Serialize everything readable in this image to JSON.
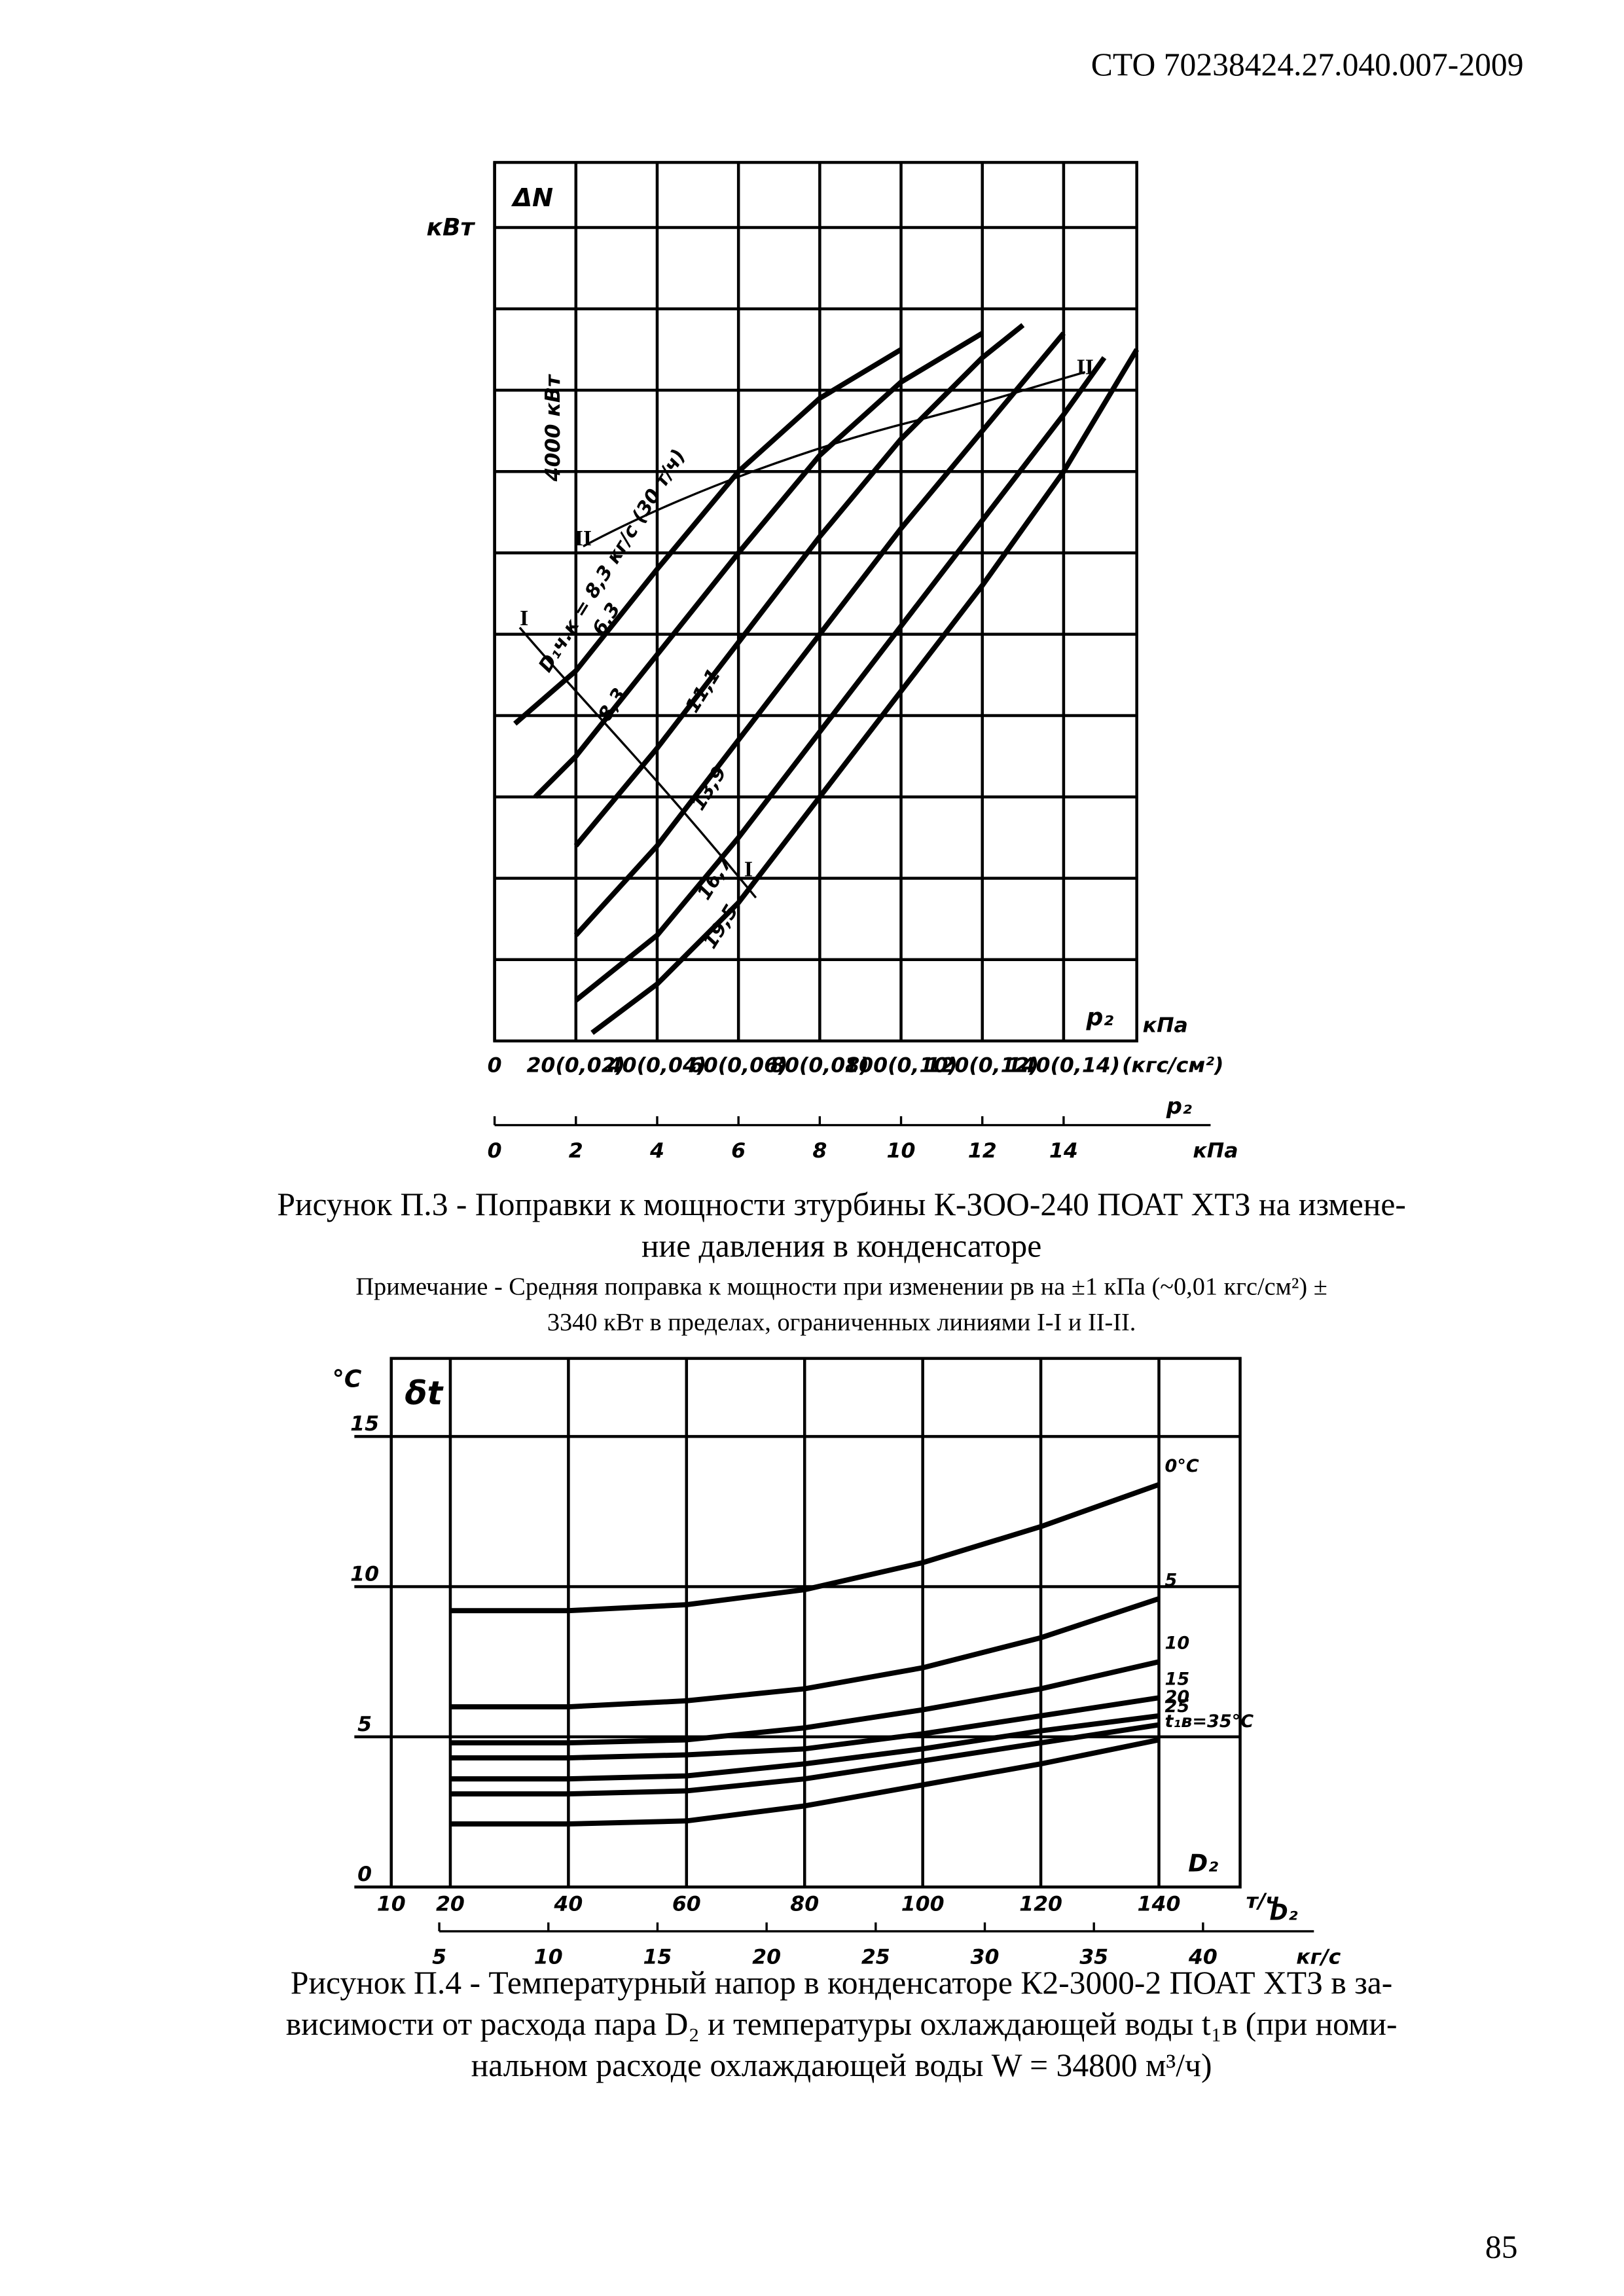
{
  "header": {
    "code": "СТО 70238424.27.040.007-2009"
  },
  "chart_data": [
    {
      "type": "line",
      "y_unit": "кВт",
      "y_label": "ΔN",
      "scale_note": "4000 кВт",
      "x_label": "p₂",
      "x_unit": "кПа",
      "x_unit_alt": "(кгс/см²)",
      "x2_label": "p₂",
      "x2_unit": "кПа",
      "xlim": [
        0,
        15.8
      ],
      "x2lim": [
        0,
        15.8
      ],
      "ylim": [
        0,
        21600
      ],
      "xticks": [
        0,
        {
          "value": 2,
          "label": "20(0,02)"
        },
        {
          "value": 4,
          "label": "40(0,04)"
        },
        {
          "value": 6,
          "label": "60(0,06)"
        },
        {
          "value": 8,
          "label": "80(0,08)"
        },
        {
          "value": 10,
          "label": "100(0,10)"
        },
        {
          "value": 12,
          "label": "120(0,12)"
        },
        {
          "value": 14,
          "label": "140(0,14)"
        }
      ],
      "x2ticks": [
        0,
        2,
        4,
        6,
        8,
        10,
        12,
        14
      ],
      "ygrid": [
        2000,
        4000,
        6000,
        8000,
        10000,
        12000,
        14000,
        16000,
        18000,
        20000
      ],
      "grid": true,
      "flow_note": "D₁ч.к = 8,3 кг/с (30 т/ч)",
      "boundary_labels": [
        "I",
        "I",
        "II",
        "II"
      ],
      "series": [
        {
          "name": "6,3",
          "color": "#000000",
          "x": [
            0.5,
            2,
            4,
            6,
            8,
            10
          ],
          "values": [
            7800,
            9100,
            11600,
            14000,
            15800,
            17000
          ]
        },
        {
          "name": "8,3",
          "color": "#000000",
          "x": [
            1,
            2,
            4,
            6,
            8,
            10,
            12
          ],
          "values": [
            6000,
            7000,
            9500,
            12000,
            14400,
            16200,
            17400
          ]
        },
        {
          "name": "11,1",
          "color": "#000000",
          "x": [
            2,
            4,
            6,
            8,
            10,
            12,
            13
          ],
          "values": [
            4800,
            7200,
            9800,
            12400,
            14800,
            16800,
            17600
          ]
        },
        {
          "name": "13,9",
          "color": "#000000",
          "x": [
            2,
            4,
            6,
            8,
            10,
            12,
            14
          ],
          "values": [
            2600,
            4800,
            7400,
            10000,
            12600,
            15000,
            17400
          ]
        },
        {
          "name": "16,7",
          "color": "#000000",
          "x": [
            2,
            4,
            6,
            8,
            10,
            12,
            14,
            15
          ],
          "values": [
            1000,
            2600,
            5000,
            7600,
            10200,
            12800,
            15400,
            16800
          ]
        },
        {
          "name": "19,5",
          "color": "#000000",
          "x": [
            2.4,
            4,
            6,
            8,
            10,
            12,
            14,
            15.8
          ],
          "values": [
            200,
            1400,
            3400,
            6000,
            8600,
            11200,
            14000,
            17000
          ]
        }
      ]
    },
    {
      "type": "line",
      "y_unit": "°C",
      "y_label": "δt",
      "x_label": "D₂",
      "x_unit": "т/ч",
      "x2_label": "D₂",
      "x2_unit": "кг/с",
      "xlim": [
        10,
        153.75
      ],
      "x2lim": [
        2.8,
        41.7
      ],
      "ylim": [
        0,
        17.6
      ],
      "xticks": [
        10,
        20,
        40,
        60,
        80,
        100,
        120,
        140
      ],
      "x2ticks": [
        5,
        10,
        15,
        20,
        25,
        30,
        35,
        40
      ],
      "yticks": [
        0,
        5,
        10,
        15
      ],
      "grid": true,
      "series": [
        {
          "name": "0°C",
          "color": "#000000",
          "x": [
            20,
            40,
            60,
            80,
            100,
            120,
            140
          ],
          "values": [
            9.2,
            9.2,
            9.4,
            9.9,
            10.8,
            12.0,
            13.4
          ]
        },
        {
          "name": "5",
          "color": "#000000",
          "x": [
            20,
            40,
            60,
            80,
            100,
            120,
            140
          ],
          "values": [
            6.0,
            6.0,
            6.2,
            6.6,
            7.3,
            8.3,
            9.6
          ]
        },
        {
          "name": "10",
          "color": "#000000",
          "x": [
            20,
            40,
            60,
            80,
            100,
            120,
            140
          ],
          "values": [
            4.8,
            4.8,
            4.9,
            5.3,
            5.9,
            6.6,
            7.5
          ]
        },
        {
          "name": "15",
          "color": "#000000",
          "x": [
            20,
            40,
            60,
            80,
            100,
            120,
            140
          ],
          "values": [
            4.3,
            4.3,
            4.4,
            4.6,
            5.1,
            5.7,
            6.3
          ]
        },
        {
          "name": "20",
          "color": "#000000",
          "x": [
            20,
            40,
            60,
            80,
            100,
            120,
            140
          ],
          "values": [
            3.6,
            3.6,
            3.7,
            4.1,
            4.6,
            5.2,
            5.7
          ]
        },
        {
          "name": "25",
          "color": "#000000",
          "x": [
            20,
            40,
            60,
            80,
            100,
            120,
            140
          ],
          "values": [
            3.1,
            3.1,
            3.2,
            3.6,
            4.2,
            4.8,
            5.4
          ]
        },
        {
          "name": "t₁в=35°C",
          "color": "#000000",
          "x": [
            20,
            40,
            60,
            80,
            100,
            120,
            140
          ],
          "values": [
            2.1,
            2.1,
            2.2,
            2.7,
            3.4,
            4.1,
            4.9
          ]
        }
      ]
    }
  ],
  "figure1": {
    "caption": [
      "Рисунок П.3 - Поправки к мощности зтурбины К-ЗОО-240 ПОАТ ХТЗ на измене-",
      "ние давления в конденсаторе"
    ],
    "note": [
      "Примечание - Средняя поправка к мощности при изменении pв на ±1 кПа (~0,01 кгс/см²) ±",
      "3340 кВт в пределах, ограниченных линиями I-I и II-II."
    ]
  },
  "figure2": {
    "caption": [
      "Рисунок П.4 - Температурный напор в конденсаторе К2-3000-2 ПОАТ ХТЗ в за-",
      "висимости от расхода пара D₂ и температуры охлаждающей воды t₁в (при номи-",
      "нальном расходе охлаждающей воды W = 34800 м³/ч)"
    ]
  },
  "page_number": "85"
}
